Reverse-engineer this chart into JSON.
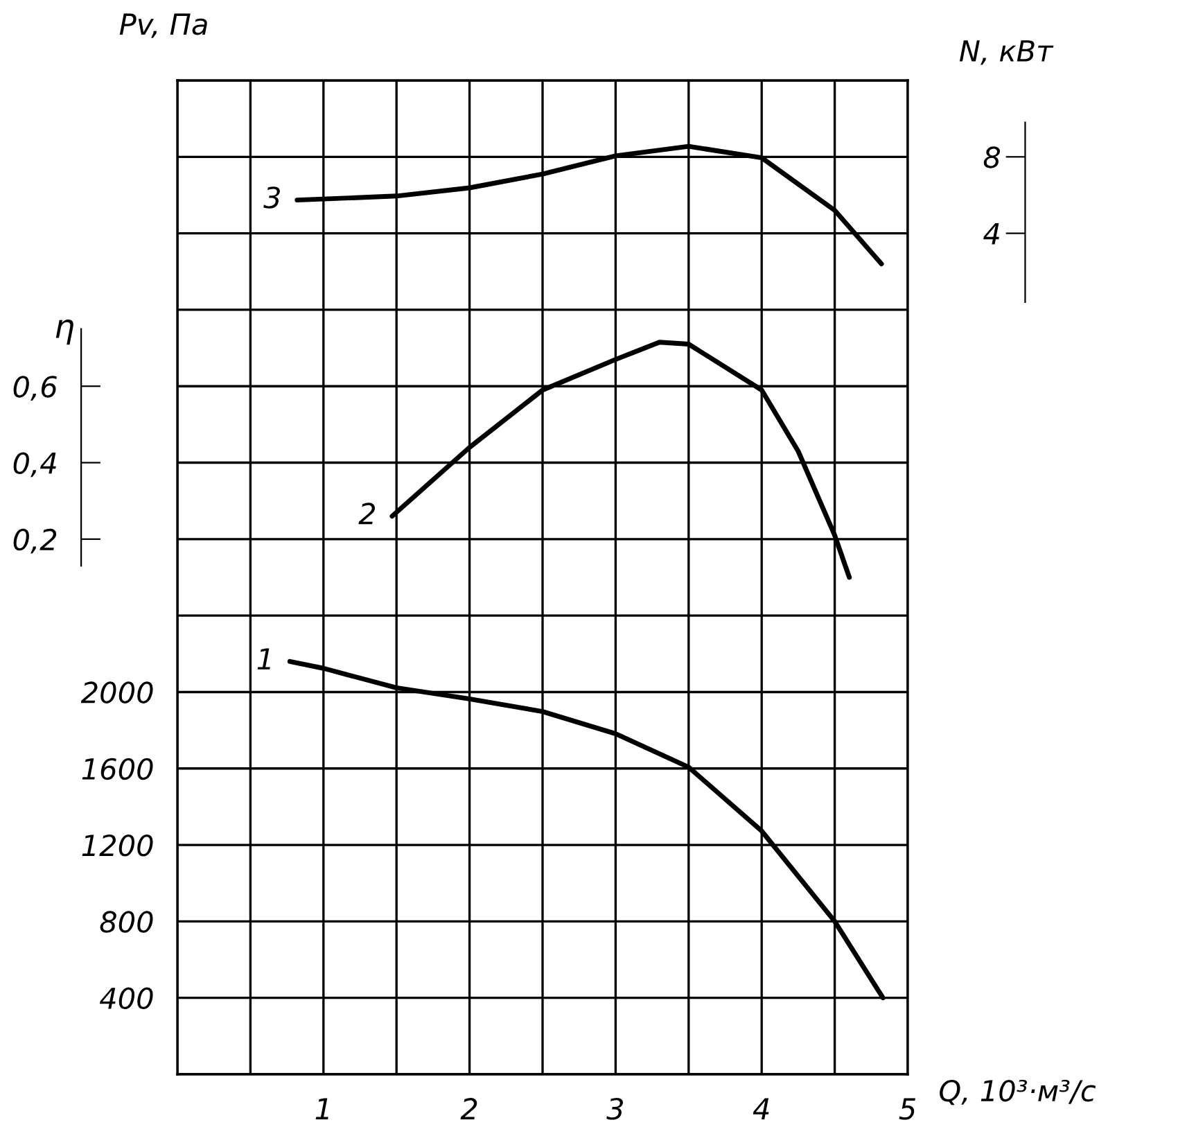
{
  "chart_data": {
    "type": "line",
    "xlabel": "Q, 10³·м³/с",
    "ylabel": "Pv, Па",
    "y2label": "η",
    "y3label": "N, кВт",
    "xlim": [
      0,
      5
    ],
    "xticks": [
      {
        "value": 0,
        "label": null
      },
      {
        "value": 0.5,
        "label": null
      },
      1,
      {
        "value": 1.5,
        "label": null
      },
      2,
      {
        "value": 2.5,
        "label": null
      },
      3,
      {
        "value": 3.5,
        "label": null
      },
      4,
      {
        "value": 4.5,
        "label": null
      },
      5
    ],
    "ylim": [
      0,
      5200
    ],
    "yticks": [
      {
        "value": 0,
        "label": null
      },
      400,
      800,
      1200,
      1600,
      2000,
      {
        "value": 2400,
        "label": null
      },
      {
        "value": 2800,
        "label": null
      },
      {
        "value": 3200,
        "label": null
      },
      {
        "value": 3600,
        "label": null
      },
      {
        "value": 4000,
        "label": null
      },
      {
        "value": 4400,
        "label": null
      },
      {
        "value": 4800,
        "label": null
      },
      {
        "value": 5200,
        "label": null
      }
    ],
    "y2lim": [
      -1.2,
      1.4
    ],
    "y2ticks": [
      {
        "value": 0.2,
        "label": "0,2"
      },
      {
        "value": 0.4,
        "label": "0,4"
      },
      {
        "value": 0.6,
        "label": "0,6"
      }
    ],
    "y3lim": [
      -40,
      12
    ],
    "y3ticks": [
      4,
      8
    ],
    "grid": true,
    "series": [
      {
        "name": "1",
        "color": "#000000",
        "axis": "y",
        "x": [
          0.77,
          1,
          1.5,
          2,
          2.5,
          3,
          3.5,
          4,
          4.5,
          4.83
        ],
        "values": [
          2160,
          2124,
          2022,
          1964,
          1898,
          1782,
          1607,
          1273,
          800,
          400
        ]
      },
      {
        "name": "2",
        "color": "#000000",
        "axis": "y2",
        "x": [
          1.47,
          2,
          2.5,
          3,
          3.3,
          3.5,
          4,
          4.25,
          4.5,
          4.6
        ],
        "values": [
          0.26,
          0.44,
          0.59,
          0.67,
          0.715,
          0.71,
          0.59,
          0.43,
          0.21,
          0.1
        ]
      },
      {
        "name": "3",
        "color": "#000000",
        "axis": "y3",
        "x": [
          0.82,
          1.5,
          2,
          2.5,
          3,
          3.5,
          4,
          4.5,
          4.82
        ],
        "values": [
          5.74,
          5.95,
          6.38,
          7.1,
          8.05,
          8.55,
          7.95,
          5.2,
          2.4
        ]
      }
    ]
  }
}
